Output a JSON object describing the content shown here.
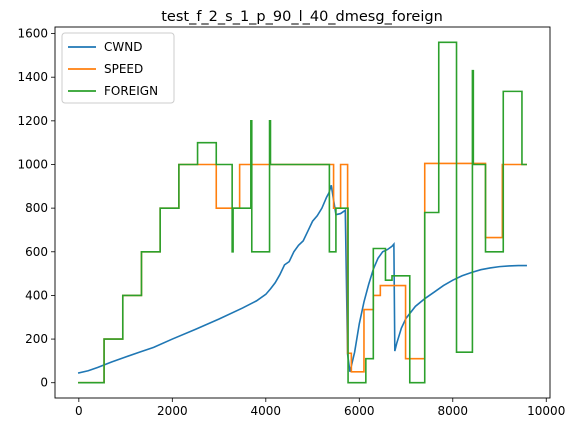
{
  "chart_data": {
    "type": "line",
    "title": "test_f_2_s_1_p_90_l_40_dmesg_foreign",
    "xlabel": "",
    "ylabel": "",
    "xlim": [
      -510,
      10080
    ],
    "ylim": [
      -70,
      1630
    ],
    "x_ticks": [
      0,
      2000,
      4000,
      6000,
      8000,
      10000
    ],
    "y_ticks": [
      0,
      200,
      400,
      600,
      800,
      1000,
      1200,
      1400,
      1600
    ],
    "grid": false,
    "legend_position": "top-left",
    "series": [
      {
        "name": "CWND",
        "color": "#1f77b4",
        "step": false,
        "points": [
          [
            0,
            45
          ],
          [
            200,
            55
          ],
          [
            400,
            70
          ],
          [
            700,
            95
          ],
          [
            1000,
            118
          ],
          [
            1300,
            140
          ],
          [
            1600,
            162
          ],
          [
            2000,
            200
          ],
          [
            2500,
            245
          ],
          [
            3000,
            292
          ],
          [
            3500,
            342
          ],
          [
            3800,
            375
          ],
          [
            4000,
            405
          ],
          [
            4100,
            430
          ],
          [
            4200,
            458
          ],
          [
            4300,
            495
          ],
          [
            4400,
            540
          ],
          [
            4500,
            555
          ],
          [
            4600,
            600
          ],
          [
            4700,
            630
          ],
          [
            4800,
            650
          ],
          [
            4900,
            695
          ],
          [
            5000,
            740
          ],
          [
            5100,
            765
          ],
          [
            5200,
            800
          ],
          [
            5300,
            850
          ],
          [
            5350,
            870
          ],
          [
            5400,
            905
          ],
          [
            5500,
            770
          ],
          [
            5600,
            775
          ],
          [
            5700,
            790
          ],
          [
            5750,
            130
          ],
          [
            5800,
            50
          ],
          [
            5900,
            140
          ],
          [
            6000,
            270
          ],
          [
            6100,
            370
          ],
          [
            6200,
            450
          ],
          [
            6300,
            520
          ],
          [
            6400,
            570
          ],
          [
            6500,
            600
          ],
          [
            6600,
            610
          ],
          [
            6700,
            625
          ],
          [
            6740,
            635
          ],
          [
            6760,
            145
          ],
          [
            6800,
            180
          ],
          [
            6900,
            250
          ],
          [
            7000,
            295
          ],
          [
            7200,
            350
          ],
          [
            7400,
            385
          ],
          [
            7600,
            415
          ],
          [
            7800,
            445
          ],
          [
            8000,
            470
          ],
          [
            8200,
            490
          ],
          [
            8400,
            505
          ],
          [
            8600,
            518
          ],
          [
            8800,
            526
          ],
          [
            9000,
            532
          ],
          [
            9200,
            535
          ],
          [
            9400,
            537
          ],
          [
            9570,
            537
          ]
        ]
      },
      {
        "name": "SPEED",
        "color": "#ff7f0e",
        "step": true,
        "points": [
          [
            0,
            0
          ],
          [
            540,
            0
          ],
          [
            540,
            200
          ],
          [
            940,
            200
          ],
          [
            940,
            400
          ],
          [
            1340,
            400
          ],
          [
            1340,
            600
          ],
          [
            1740,
            600
          ],
          [
            1740,
            800
          ],
          [
            2140,
            800
          ],
          [
            2140,
            1000
          ],
          [
            2940,
            1000
          ],
          [
            2940,
            800
          ],
          [
            3440,
            800
          ],
          [
            3440,
            1000
          ],
          [
            5450,
            1000
          ],
          [
            5450,
            800
          ],
          [
            5600,
            800
          ],
          [
            5600,
            1000
          ],
          [
            5750,
            1000
          ],
          [
            5750,
            135
          ],
          [
            5830,
            135
          ],
          [
            5830,
            50
          ],
          [
            6100,
            50
          ],
          [
            6100,
            335
          ],
          [
            6300,
            335
          ],
          [
            6300,
            400
          ],
          [
            6450,
            400
          ],
          [
            6450,
            445
          ],
          [
            6990,
            445
          ],
          [
            6990,
            110
          ],
          [
            7400,
            110
          ],
          [
            7400,
            1005
          ],
          [
            8700,
            1005
          ],
          [
            8700,
            665
          ],
          [
            9060,
            665
          ],
          [
            9060,
            1000
          ],
          [
            9570,
            1000
          ]
        ]
      },
      {
        "name": "FOREIGN",
        "color": "#2ca02c",
        "step": true,
        "points": [
          [
            0,
            0
          ],
          [
            540,
            0
          ],
          [
            540,
            200
          ],
          [
            940,
            200
          ],
          [
            940,
            400
          ],
          [
            1340,
            400
          ],
          [
            1340,
            600
          ],
          [
            1740,
            600
          ],
          [
            1740,
            800
          ],
          [
            2140,
            800
          ],
          [
            2140,
            1000
          ],
          [
            2540,
            1000
          ],
          [
            2540,
            1100
          ],
          [
            2940,
            1100
          ],
          [
            2940,
            1000
          ],
          [
            3280,
            1000
          ],
          [
            3280,
            600
          ],
          [
            3300,
            600
          ],
          [
            3300,
            800
          ],
          [
            3680,
            800
          ],
          [
            3680,
            1200
          ],
          [
            3700,
            1200
          ],
          [
            3700,
            600
          ],
          [
            4080,
            600
          ],
          [
            4080,
            1200
          ],
          [
            4100,
            1200
          ],
          [
            4100,
            1000
          ],
          [
            5360,
            1000
          ],
          [
            5360,
            600
          ],
          [
            5500,
            600
          ],
          [
            5500,
            800
          ],
          [
            5760,
            800
          ],
          [
            5760,
            0
          ],
          [
            6140,
            0
          ],
          [
            6140,
            110
          ],
          [
            6300,
            110
          ],
          [
            6300,
            615
          ],
          [
            6560,
            615
          ],
          [
            6560,
            470
          ],
          [
            6700,
            470
          ],
          [
            6700,
            490
          ],
          [
            7080,
            490
          ],
          [
            7080,
            0
          ],
          [
            7400,
            0
          ],
          [
            7400,
            780
          ],
          [
            7700,
            780
          ],
          [
            7700,
            1560
          ],
          [
            8080,
            1560
          ],
          [
            8080,
            140
          ],
          [
            8420,
            140
          ],
          [
            8420,
            1430
          ],
          [
            8440,
            1430
          ],
          [
            8440,
            1000
          ],
          [
            8700,
            1000
          ],
          [
            8700,
            600
          ],
          [
            9080,
            600
          ],
          [
            9080,
            1335
          ],
          [
            9480,
            1335
          ],
          [
            9480,
            1000
          ],
          [
            9570,
            1000
          ]
        ]
      }
    ]
  }
}
